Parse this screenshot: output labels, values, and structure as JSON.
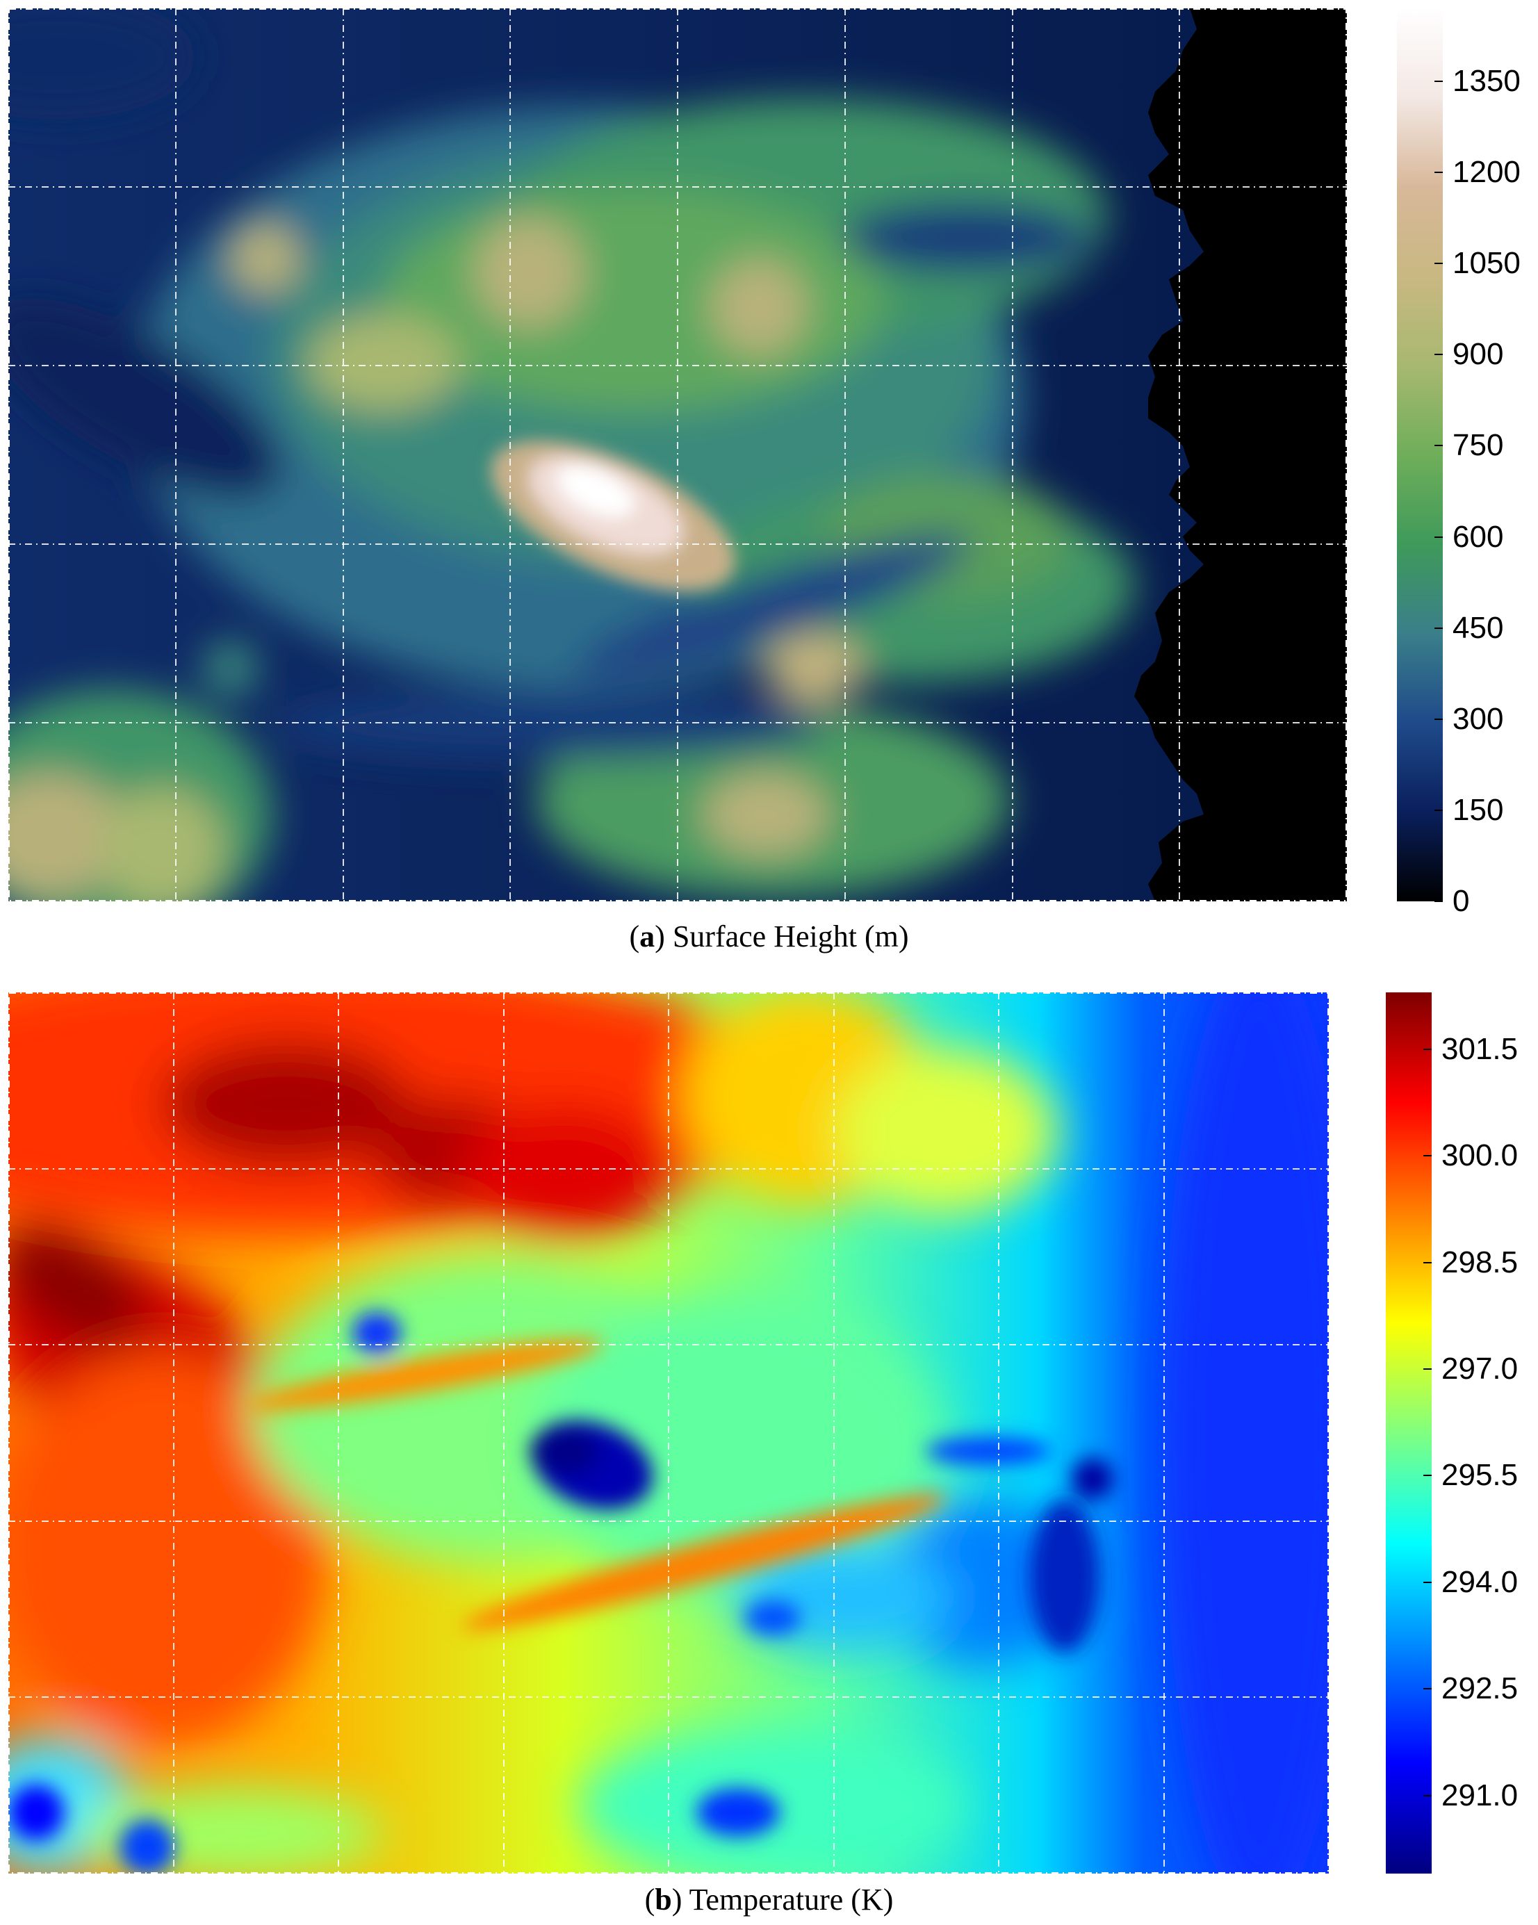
{
  "chart_data": [
    {
      "type": "heatmap",
      "panel_letter": "a",
      "caption": "Surface Height (m)",
      "colorbar": {
        "ticks": [
          "0",
          "150",
          "300",
          "450",
          "600",
          "750",
          "900",
          "1050",
          "1200",
          "1350"
        ],
        "tick_values": [
          0,
          150,
          300,
          450,
          600,
          750,
          900,
          1050,
          1200,
          1350
        ],
        "range": [
          0,
          1470
        ],
        "colormap": [
          "#000000",
          "#0a1f5c",
          "#1f4a8a",
          "#3a7f8a",
          "#3f9a5a",
          "#6fae5a",
          "#a8b870",
          "#c9b882",
          "#d8b89a",
          "#f3e8e4",
          "#ffffff"
        ]
      },
      "grid": true,
      "features": {
        "peak": "central summit",
        "plain": "black zone on the right"
      }
    },
    {
      "type": "heatmap",
      "panel_letter": "b",
      "caption": "Temperature (K)",
      "colorbar": {
        "ticks": [
          "291.0",
          "292.5",
          "294.0",
          "295.5",
          "297.0",
          "298.5",
          "300.0",
          "301.5"
        ],
        "tick_values": [
          291.0,
          292.5,
          294.0,
          295.5,
          297.0,
          298.5,
          300.0,
          301.5
        ],
        "range": [
          289.9,
          302.3
        ],
        "colormap": [
          "#00007f",
          "#0000ff",
          "#0080ff",
          "#00ffff",
          "#80ff80",
          "#ffff00",
          "#ff8000",
          "#ff0000",
          "#7f0000"
        ]
      },
      "grid": true,
      "features": {
        "hot_region": "northwest",
        "cold_spot": "central summit",
        "cool_region": "right"
      }
    }
  ]
}
